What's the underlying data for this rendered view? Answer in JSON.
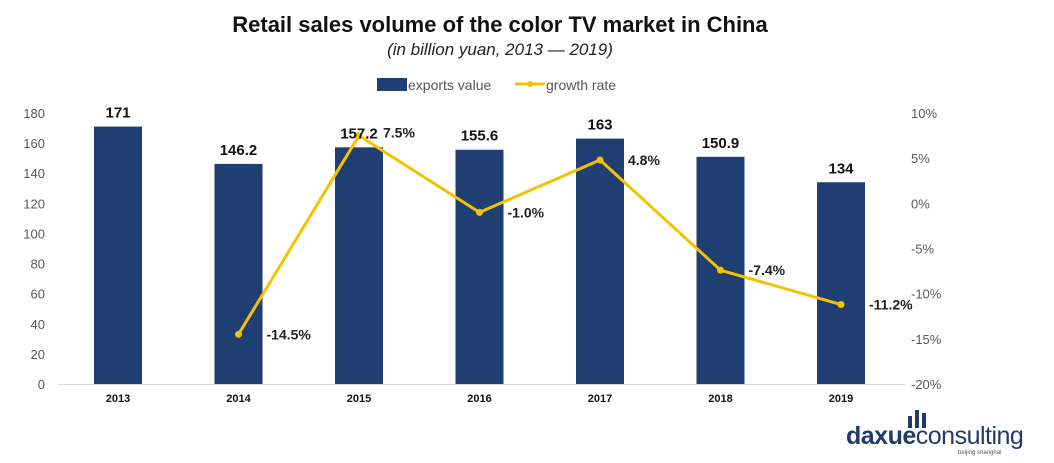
{
  "chart_data": {
    "type": "bar",
    "title": "Retail sales volume of the color TV market in China",
    "subtitle": "(in billion yuan, 2013 — 2019)",
    "categories": [
      "2013",
      "2014",
      "2015",
      "2016",
      "2017",
      "2018",
      "2019"
    ],
    "series": [
      {
        "name": "exports value",
        "type": "bar",
        "axis": "left",
        "color": "#1f3f73",
        "values": [
          171,
          146.2,
          157.2,
          155.6,
          163,
          150.9,
          134
        ],
        "labels": [
          "171",
          "146.2",
          "157.2",
          "155.6",
          "163",
          "150.9",
          "134"
        ]
      },
      {
        "name": "growth rate",
        "type": "line",
        "axis": "right",
        "color": "#f5c200",
        "values": [
          null,
          -14.5,
          7.5,
          -1.0,
          4.8,
          -7.4,
          -11.2
        ],
        "labels": [
          "",
          "-14.5%",
          "7.5%",
          "-1.0%",
          "4.8%",
          "-7.4%",
          "-11.2%"
        ]
      }
    ],
    "y_left": {
      "min": 0,
      "max": 180,
      "ticks": [
        "0",
        "20",
        "40",
        "60",
        "80",
        "100",
        "120",
        "140",
        "160",
        "180"
      ]
    },
    "y_right": {
      "min": -20,
      "max": 10,
      "ticks": [
        "-20%",
        "-15%",
        "-10%",
        "-5%",
        "0%",
        "5%",
        "10%"
      ]
    },
    "legend": "top-center",
    "grid": false
  },
  "logo": {
    "brand_bold": "daxue",
    "brand_rest": "consulting",
    "tagline": "beijing shanghai"
  }
}
